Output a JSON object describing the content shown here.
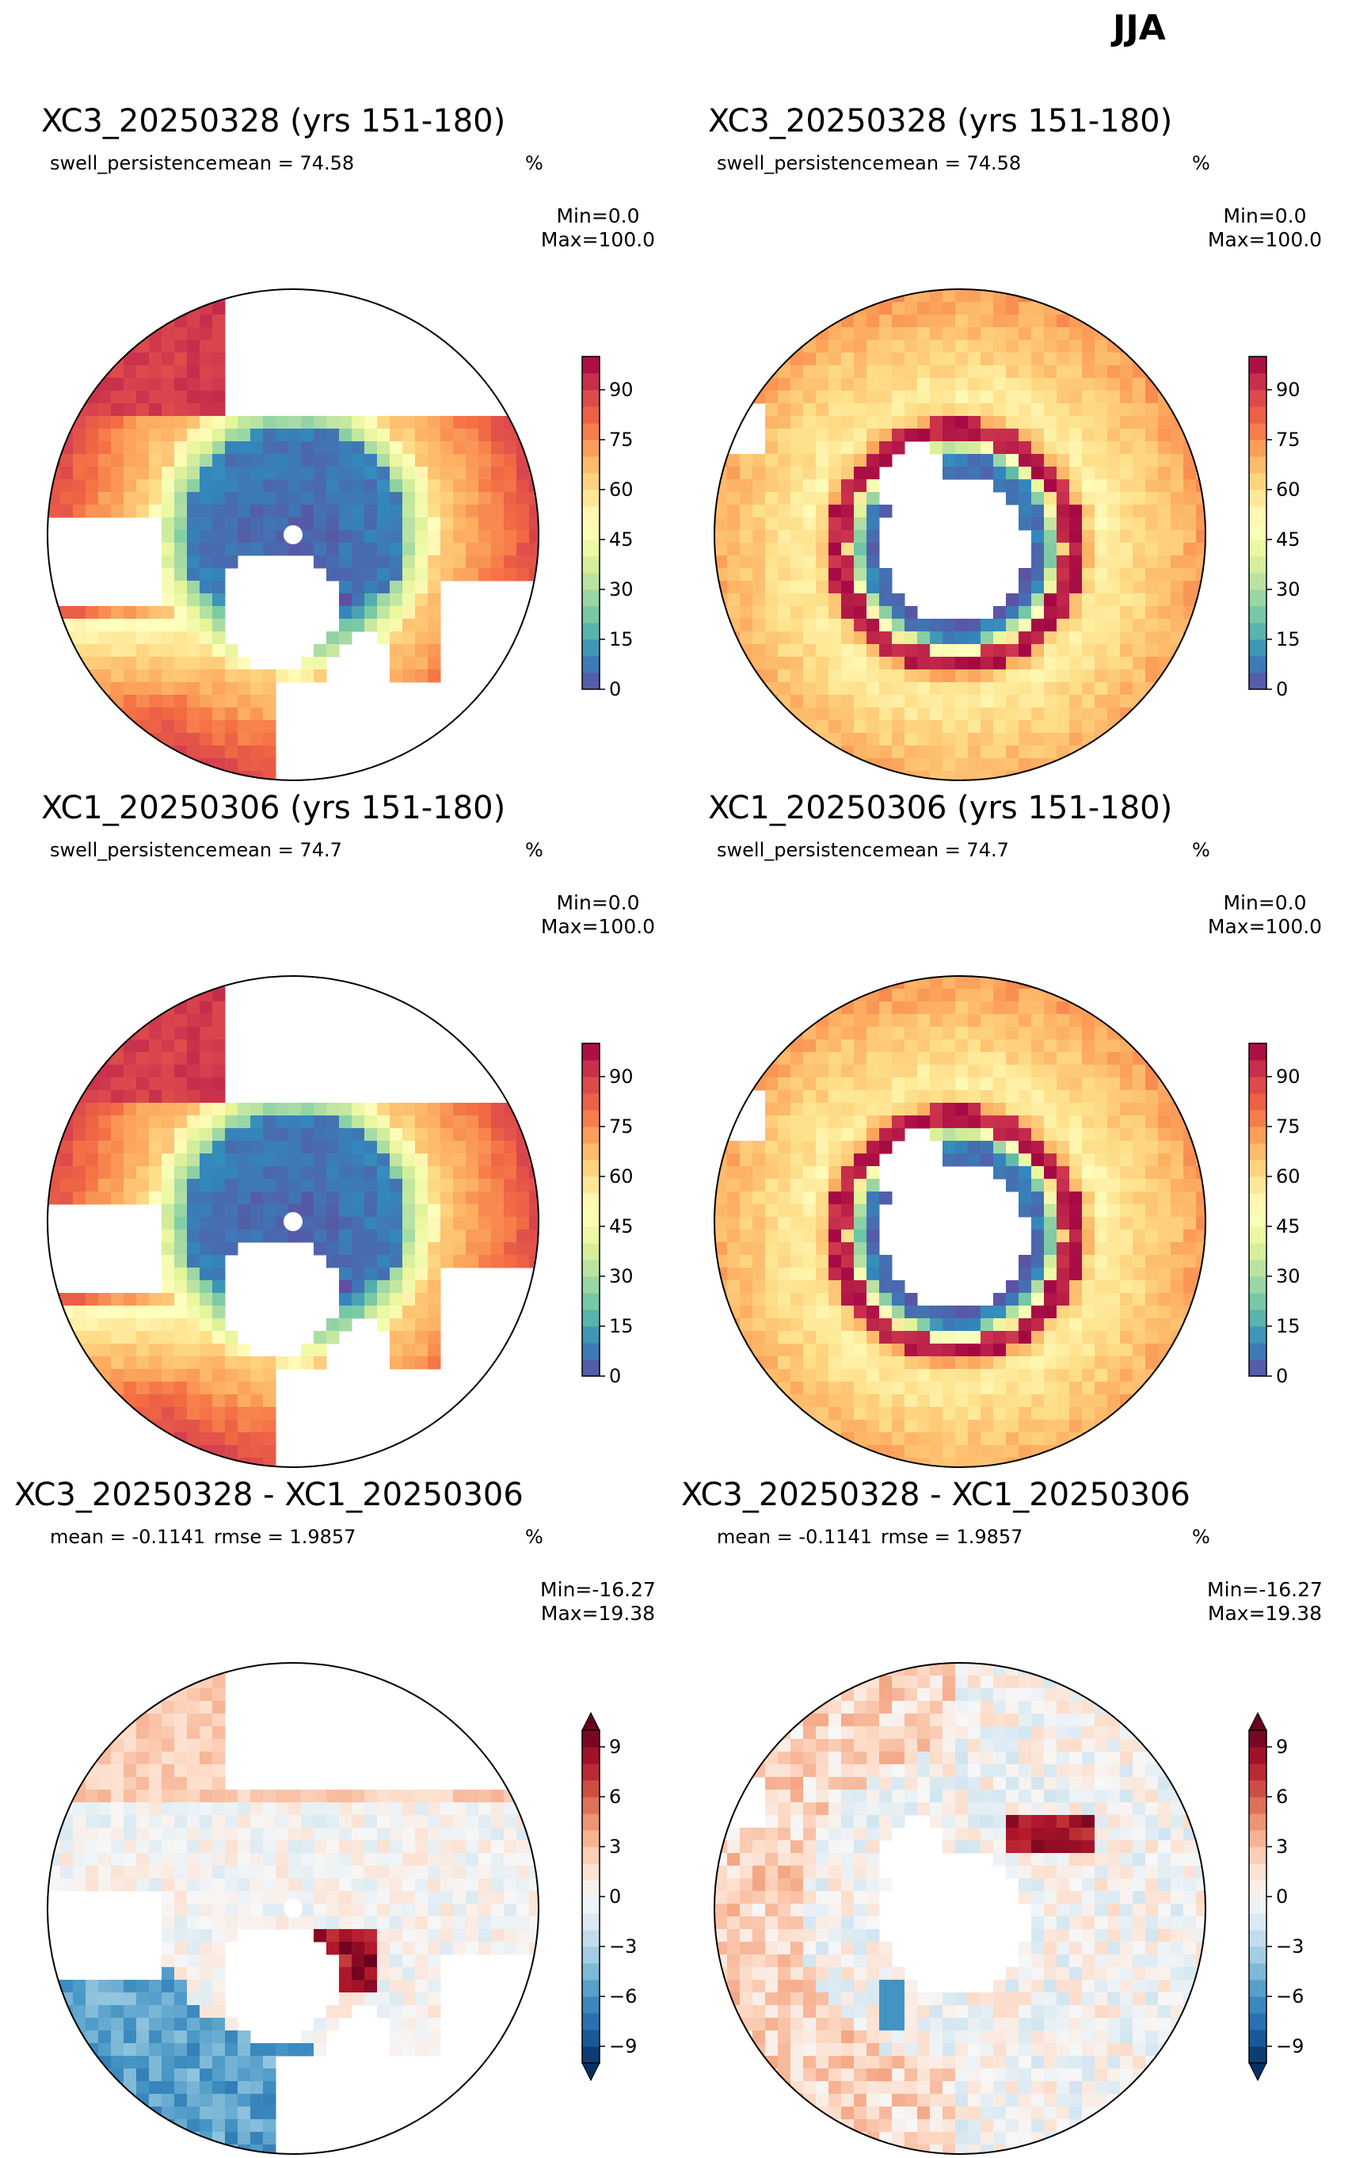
{
  "suptitle": "JJA",
  "colormaps": {
    "spectral": [
      "#5e4fa2",
      "#3288bd",
      "#66c2a5",
      "#abdda4",
      "#e6f598",
      "#ffffbf",
      "#fee08b",
      "#fdae61",
      "#f46d43",
      "#d53e4f",
      "#9e0142"
    ],
    "rdbu": [
      "#053061",
      "#2166ac",
      "#4393c3",
      "#92c5de",
      "#d1e5f0",
      "#f7f7f7",
      "#fddbc7",
      "#f4a582",
      "#d6604d",
      "#b2182b",
      "#67001f"
    ]
  },
  "panels": [
    {
      "title": "XC3_20250328 (yrs 151-180)",
      "left_sub": "swell_persistence",
      "center_sub": "mean = 74.58",
      "units": "%",
      "min": "Min=0.0",
      "max": "Max=100.0"
    },
    {
      "title": "XC3_20250328 (yrs 151-180)",
      "left_sub": "swell_persistence",
      "center_sub": "mean = 74.58",
      "units": "%",
      "min": "Min=0.0",
      "max": "Max=100.0"
    },
    {
      "title": "XC1_20250306 (yrs 151-180)",
      "left_sub": "swell_persistence",
      "center_sub": "mean = 74.7",
      "units": "%",
      "min": "Min=0.0",
      "max": "Max=100.0"
    },
    {
      "title": "XC1_20250306 (yrs 151-180)",
      "left_sub": "swell_persistence",
      "center_sub": "mean = 74.7",
      "units": "%",
      "min": "Min=0.0",
      "max": "Max=100.0"
    },
    {
      "title": "XC3_20250328 - XC1_20250306",
      "left_sub": "mean = -0.1141",
      "center_sub": "rmse = 1.9857",
      "units": "%",
      "min": "Min=-16.27",
      "max": "Max=19.38"
    },
    {
      "title": "XC3_20250328 - XC1_20250306",
      "left_sub": "mean = -0.1141",
      "center_sub": "rmse = 1.9857",
      "units": "%",
      "min": "Min=-16.27",
      "max": "Max=19.38"
    }
  ],
  "chart_data": [
    {
      "type": "heatmap",
      "projection": "north-polar-stereographic",
      "variable": "swell_persistence",
      "units": "%",
      "colormap": "spectral",
      "colorbar_range": [
        0,
        100
      ],
      "colorbar_ticks": [
        0,
        15,
        30,
        45,
        60,
        75,
        90
      ]
    },
    {
      "type": "heatmap",
      "projection": "south-polar-stereographic",
      "variable": "swell_persistence",
      "units": "%",
      "colormap": "spectral",
      "colorbar_range": [
        0,
        100
      ],
      "colorbar_ticks": [
        0,
        15,
        30,
        45,
        60,
        75,
        90
      ]
    },
    {
      "type": "heatmap",
      "projection": "north-polar-stereographic",
      "variable": "swell_persistence",
      "units": "%",
      "colormap": "spectral",
      "colorbar_range": [
        0,
        100
      ],
      "colorbar_ticks": [
        0,
        15,
        30,
        45,
        60,
        75,
        90
      ]
    },
    {
      "type": "heatmap",
      "projection": "south-polar-stereographic",
      "variable": "swell_persistence",
      "units": "%",
      "colormap": "spectral",
      "colorbar_range": [
        0,
        100
      ],
      "colorbar_ticks": [
        0,
        15,
        30,
        45,
        60,
        75,
        90
      ]
    },
    {
      "type": "heatmap",
      "projection": "north-polar-stereographic",
      "units": "%",
      "colormap": "rdbu",
      "colorbar_range": [
        -10,
        10
      ],
      "colorbar_extend": "both",
      "colorbar_ticks": [
        -9,
        -6,
        -3,
        0,
        3,
        6,
        9
      ]
    },
    {
      "type": "heatmap",
      "projection": "south-polar-stereographic",
      "units": "%",
      "colormap": "rdbu",
      "colorbar_range": [
        -10,
        10
      ],
      "colorbar_extend": "both",
      "colorbar_ticks": [
        -9,
        -6,
        -3,
        0,
        3,
        6,
        9
      ]
    }
  ]
}
